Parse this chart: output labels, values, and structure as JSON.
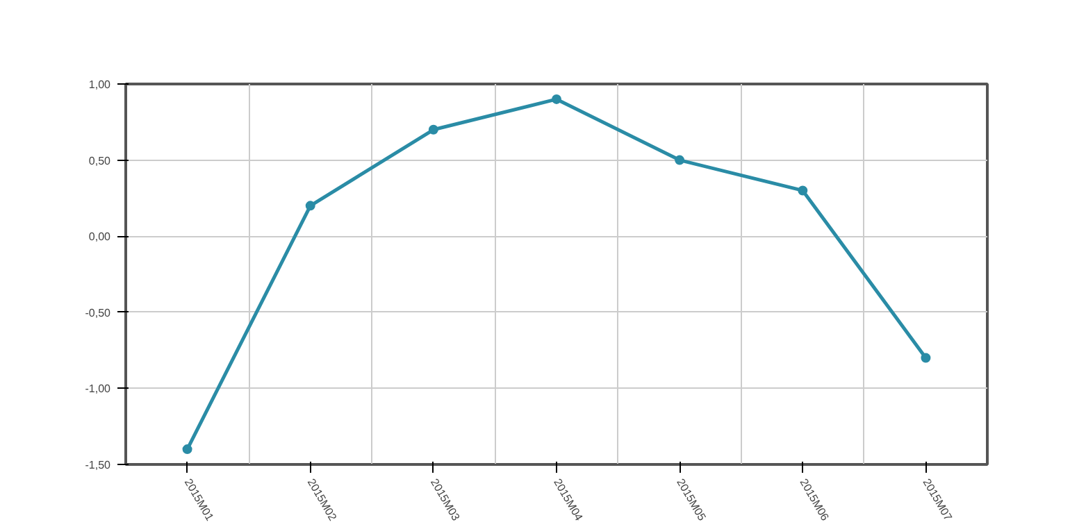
{
  "chart_data": {
    "type": "line",
    "categories": [
      "2015M01",
      "2015M02",
      "2015M03",
      "2015M04",
      "2015M05",
      "2015M06",
      "2015M07"
    ],
    "series": [
      {
        "color": "#2a8ca6",
        "values": [
          -1.4,
          0.2,
          0.7,
          0.9,
          0.5,
          0.3,
          -0.8
        ]
      }
    ],
    "ylim": [
      -1.5,
      1.0
    ],
    "yticks": [
      {
        "value": -1.5,
        "label": "-1,50"
      },
      {
        "value": -1.0,
        "label": "-1,00"
      },
      {
        "value": -0.5,
        "label": "-0,50"
      },
      {
        "value": 0,
        "label": "0,00"
      },
      {
        "value": 0.5,
        "label": "0,50"
      },
      {
        "value": 1.0,
        "label": "1,00"
      }
    ],
    "grid": true,
    "marker": "circle",
    "line_style": "solid"
  }
}
